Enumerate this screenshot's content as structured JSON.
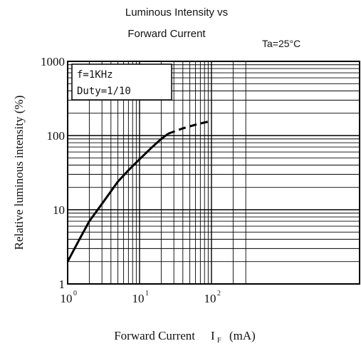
{
  "chart_data": {
    "type": "line",
    "title_line1": "Luminous Intensity vs",
    "title_line2": "Forward Current",
    "condition": "Ta=25°C",
    "xlabel": "Forward Current",
    "xlabel_symbol": "I",
    "xlabel_subscript": "F",
    "xlabel_unit": "(mA)",
    "ylabel": "Relative luminous intensity (%)",
    "xscale": "log",
    "yscale": "log",
    "xlim": [
      1,
      300
    ],
    "ylim": [
      1,
      1000
    ],
    "grid": true,
    "x_ticks": [
      {
        "value": 1,
        "base": "10",
        "exp": "0"
      },
      {
        "value": 10,
        "base": "10",
        "exp": "1"
      },
      {
        "value": 100,
        "base": "10",
        "exp": "2"
      }
    ],
    "y_ticks": [
      {
        "value": 1,
        "label": "1"
      },
      {
        "value": 10,
        "label": "10"
      },
      {
        "value": 100,
        "label": "100"
      },
      {
        "value": 1000,
        "label": "1000"
      }
    ],
    "legend": {
      "placement": "top-left",
      "lines": [
        "f=1KHz",
        "Duty=1/10"
      ]
    },
    "series": [
      {
        "style": "solid",
        "x": [
          1,
          1.5,
          2,
          3,
          5,
          7,
          10,
          15,
          20,
          25
        ],
        "y": [
          2,
          4.2,
          7,
          12,
          24,
          34,
          48,
          70,
          90,
          106
        ]
      },
      {
        "style": "dashed",
        "x": [
          25,
          40,
          60,
          80,
          100
        ],
        "y": [
          106,
          125,
          140,
          150,
          157
        ]
      }
    ]
  }
}
